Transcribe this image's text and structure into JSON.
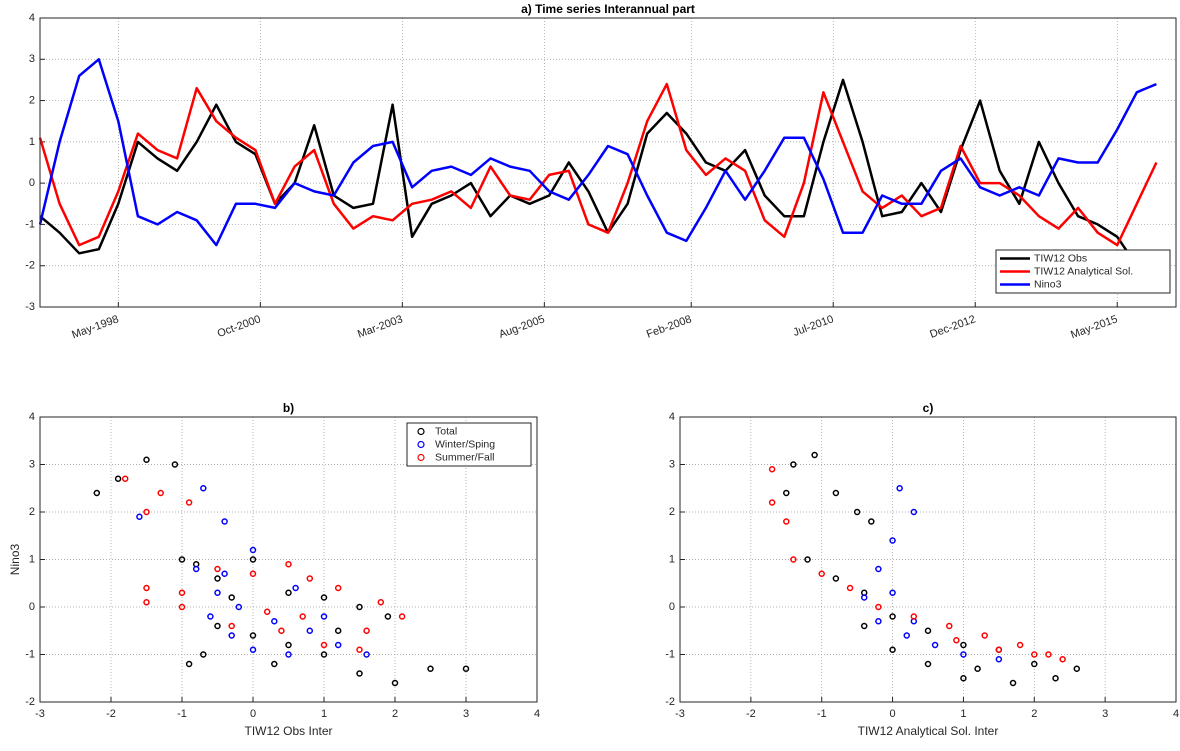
{
  "chart_data": [
    {
      "type": "line",
      "title": "a) Time series Interannual part",
      "x": [
        "1997-01",
        "1997-05",
        "1997-09",
        "1998-01",
        "1998-05",
        "1998-09",
        "1999-01",
        "1999-05",
        "1999-09",
        "2000-01",
        "2000-05",
        "2000-09",
        "2001-01",
        "2001-05",
        "2001-09",
        "2002-01",
        "2002-05",
        "2002-09",
        "2003-01",
        "2003-05",
        "2003-09",
        "2004-01",
        "2004-05",
        "2004-09",
        "2005-01",
        "2005-05",
        "2005-09",
        "2006-01",
        "2006-05",
        "2006-09",
        "2007-01",
        "2007-05",
        "2007-09",
        "2008-01",
        "2008-05",
        "2008-09",
        "2009-01",
        "2009-05",
        "2009-09",
        "2010-01",
        "2010-05",
        "2010-09",
        "2011-01",
        "2011-05",
        "2011-09",
        "2012-01",
        "2012-05",
        "2012-09",
        "2013-01",
        "2013-05",
        "2013-09",
        "2014-01",
        "2014-05",
        "2014-09",
        "2015-01",
        "2015-05",
        "2015-09",
        "2016-01"
      ],
      "series": [
        {
          "name": "TIW12 Obs",
          "color": "#000000",
          "values": [
            -0.8,
            -1.2,
            -1.7,
            -1.6,
            -0.5,
            1.0,
            0.6,
            0.3,
            1.0,
            1.9,
            1.0,
            0.7,
            -0.5,
            0.0,
            1.4,
            -0.3,
            -0.6,
            -0.5,
            1.9,
            -1.3,
            -0.5,
            -0.3,
            0.0,
            -0.8,
            -0.3,
            -0.5,
            -0.3,
            0.5,
            -0.2,
            -1.2,
            -0.5,
            1.2,
            1.7,
            1.2,
            0.5,
            0.3,
            0.8,
            -0.3,
            -0.8,
            -0.8,
            1.0,
            2.5,
            1.0,
            -0.8,
            -0.7,
            0.0,
            -0.7,
            0.8,
            2.0,
            0.3,
            -0.5,
            1.0,
            0.0,
            -0.8,
            -1.0,
            -1.3,
            -2.0,
            -1.8
          ]
        },
        {
          "name": "TIW12 Analytical Sol.",
          "color": "#ff0000",
          "values": [
            1.1,
            -0.5,
            -1.5,
            -1.3,
            -0.2,
            1.2,
            0.8,
            0.6,
            2.3,
            1.5,
            1.1,
            0.8,
            -0.5,
            0.4,
            0.8,
            -0.5,
            -1.1,
            -0.8,
            -0.9,
            -0.5,
            -0.4,
            -0.2,
            -0.6,
            0.4,
            -0.3,
            -0.4,
            0.2,
            0.3,
            -1.0,
            -1.2,
            0.0,
            1.5,
            2.4,
            0.8,
            0.2,
            0.6,
            0.3,
            -0.9,
            -1.3,
            0.0,
            2.2,
            1.0,
            -0.2,
            -0.6,
            -0.3,
            -0.8,
            -0.6,
            0.9,
            0.0,
            0.0,
            -0.3,
            -0.8,
            -1.1,
            -0.6,
            -1.2,
            -1.5,
            -0.5,
            0.5
          ]
        },
        {
          "name": "Nino3",
          "color": "#0000ff",
          "values": [
            -1.0,
            1.0,
            2.6,
            3.0,
            1.5,
            -0.8,
            -1.0,
            -0.7,
            -0.9,
            -1.5,
            -0.5,
            -0.5,
            -0.6,
            0.0,
            -0.2,
            -0.3,
            0.5,
            0.9,
            1.0,
            -0.1,
            0.3,
            0.4,
            0.2,
            0.6,
            0.4,
            0.3,
            -0.2,
            -0.4,
            0.2,
            0.9,
            0.7,
            -0.3,
            -1.2,
            -1.4,
            -0.6,
            0.3,
            -0.4,
            0.3,
            1.1,
            1.1,
            0.1,
            -1.2,
            -1.2,
            -0.3,
            -0.5,
            -0.5,
            0.3,
            0.6,
            -0.1,
            -0.3,
            -0.1,
            -0.3,
            0.6,
            0.5,
            0.5,
            1.3,
            2.2,
            2.4
          ]
        }
      ],
      "xlim": [
        "1997-01",
        "2016-05"
      ],
      "xticks": [
        {
          "value": "1998-05",
          "label": "May-1998"
        },
        {
          "value": "2000-10",
          "label": "Oct-2000"
        },
        {
          "value": "2003-03",
          "label": "Mar-2003"
        },
        {
          "value": "2005-08",
          "label": "Aug-2005"
        },
        {
          "value": "2008-02",
          "label": "Feb-2008"
        },
        {
          "value": "2010-07",
          "label": "Jul-2010"
        },
        {
          "value": "2012-12",
          "label": "Dec-2012"
        },
        {
          "value": "2015-05",
          "label": "May-2015"
        }
      ],
      "ylim": [
        -3,
        4
      ],
      "yticks": [
        -3,
        -2,
        -1,
        0,
        1,
        2,
        3,
        4
      ],
      "grid": true,
      "legend": "lower right"
    },
    {
      "type": "scatter",
      "title": "b)",
      "xlabel": "TIW12 Obs Inter",
      "ylabel": "Nino3",
      "series": [
        {
          "name": "Total",
          "color": "#000000",
          "x": [
            -2.2,
            -1.9,
            -1.5,
            -1.1,
            -1.0,
            -0.8,
            -0.5,
            0.0,
            0.5,
            1.0,
            1.5,
            1.9,
            2.5,
            3.0,
            2.0,
            1.5,
            1.0,
            0.5,
            0.0,
            -0.5,
            -0.9,
            -0.7,
            0.3,
            1.2,
            -0.3
          ],
          "values": [
            2.4,
            2.7,
            3.1,
            3.0,
            1.0,
            0.9,
            0.6,
            1.0,
            0.3,
            0.2,
            0.0,
            -0.2,
            -1.3,
            -1.3,
            -1.6,
            -1.4,
            -1.0,
            -0.8,
            -0.6,
            -0.4,
            -1.2,
            -1.0,
            -1.2,
            -0.5,
            0.2
          ]
        },
        {
          "name": "Winter/Sping",
          "color": "#0000ff",
          "x": [
            -1.6,
            -0.7,
            -0.4,
            0.0,
            -0.8,
            -0.5,
            -0.2,
            0.3,
            0.8,
            1.2,
            1.6,
            0.5,
            -0.3,
            -0.6,
            0.0,
            1.0,
            -0.4,
            0.6
          ],
          "values": [
            1.9,
            2.5,
            1.8,
            1.2,
            0.8,
            0.3,
            0.0,
            -0.3,
            -0.5,
            -0.8,
            -1.0,
            -1.0,
            -0.6,
            -0.2,
            -0.9,
            -0.2,
            0.7,
            0.4
          ]
        },
        {
          "name": "Summer/Fall",
          "color": "#ff0000",
          "x": [
            -1.8,
            -1.5,
            -1.3,
            -0.9,
            -1.5,
            -1.0,
            -0.5,
            0.0,
            0.5,
            0.8,
            1.2,
            1.8,
            2.1,
            1.6,
            1.0,
            0.4,
            -0.3,
            -1.0,
            -1.5,
            0.2,
            1.5,
            0.7
          ],
          "values": [
            2.7,
            2.0,
            2.4,
            2.2,
            0.4,
            0.3,
            0.8,
            0.7,
            0.9,
            0.6,
            0.4,
            0.1,
            -0.2,
            -0.5,
            -0.8,
            -0.5,
            -0.4,
            0.0,
            0.1,
            -0.1,
            -0.9,
            -0.2
          ]
        }
      ],
      "xlim": [
        -3,
        4
      ],
      "xticks": [
        -3,
        -2,
        -1,
        0,
        1,
        2,
        3,
        4
      ],
      "ylim": [
        -2,
        4
      ],
      "yticks": [
        -2,
        -1,
        0,
        1,
        2,
        3,
        4
      ],
      "grid": true,
      "legend": "upper right"
    },
    {
      "type": "scatter",
      "title": "c)",
      "xlabel": "TIW12 Analytical Sol. Inter",
      "series": [
        {
          "color": "#000000",
          "x": [
            -1.4,
            -1.1,
            -0.8,
            -0.5,
            -0.3,
            -1.5,
            -1.2,
            -0.8,
            -0.4,
            0.0,
            0.5,
            1.0,
            1.5,
            2.0,
            2.6,
            2.3,
            1.7,
            1.0,
            0.5,
            0.0,
            -0.4,
            1.2
          ],
          "values": [
            3.0,
            3.2,
            2.4,
            2.0,
            1.8,
            2.4,
            1.0,
            0.6,
            0.3,
            -0.2,
            -0.5,
            -0.8,
            -0.9,
            -1.2,
            -1.3,
            -1.5,
            -1.6,
            -1.5,
            -1.2,
            -0.9,
            -0.4,
            -1.3
          ]
        },
        {
          "color": "#0000ff",
          "x": [
            0.1,
            0.3,
            0.0,
            -0.2,
            -0.4,
            -0.2,
            0.2,
            0.6,
            1.0,
            1.5,
            0.3,
            0.0
          ],
          "values": [
            2.5,
            2.0,
            1.4,
            0.8,
            0.2,
            -0.3,
            -0.6,
            -0.8,
            -1.0,
            -1.1,
            -0.3,
            0.3
          ]
        },
        {
          "color": "#ff0000",
          "x": [
            -1.7,
            -1.7,
            -1.5,
            -1.4,
            -1.0,
            -0.6,
            -0.2,
            0.3,
            0.8,
            1.3,
            1.8,
            2.2,
            2.4,
            2.0,
            1.5,
            0.9
          ],
          "values": [
            2.9,
            2.2,
            1.8,
            1.0,
            0.7,
            0.4,
            0.0,
            -0.2,
            -0.4,
            -0.6,
            -0.8,
            -1.0,
            -1.1,
            -1.0,
            -0.9,
            -0.7
          ]
        }
      ],
      "xlim": [
        -3,
        4
      ],
      "xticks": [
        -3,
        -2,
        -1,
        0,
        1,
        2,
        3,
        4
      ],
      "ylim": [
        -2,
        4
      ],
      "yticks": [
        -2,
        -1,
        0,
        1,
        2,
        3,
        4
      ],
      "grid": true
    }
  ]
}
